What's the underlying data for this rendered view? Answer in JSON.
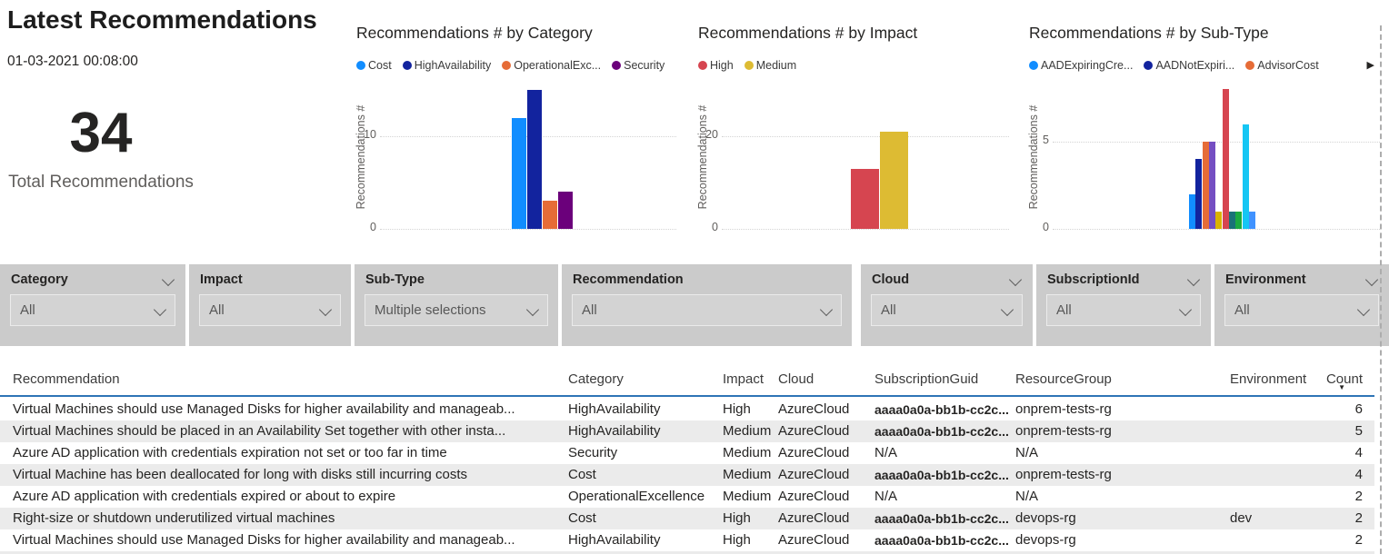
{
  "kpi": {
    "title": "Latest Recommendations",
    "timestamp": "01-03-2021 00:08:00",
    "value": "34",
    "label": "Total Recommendations"
  },
  "chart_data": [
    {
      "type": "bar",
      "title": "Recommendations # by Category",
      "ylabel": "Recommendations #",
      "categories": [
        "Cost",
        "HighAvailability",
        "OperationalExcellence",
        "Security"
      ],
      "legend_labels": [
        "Cost",
        "HighAvailability",
        "OperationalExc...",
        "Security"
      ],
      "values": [
        12,
        15,
        3,
        4
      ],
      "colors": [
        "#118DFF",
        "#12239E",
        "#E66C37",
        "#6B007B"
      ],
      "gridline": 10,
      "yticks": [
        0,
        10
      ],
      "ylim": [
        0,
        15.5
      ],
      "legend_position": "top",
      "legend_overflow": false
    },
    {
      "type": "bar",
      "title": "Recommendations # by Impact",
      "ylabel": "Recommendations #",
      "categories": [
        "High",
        "Medium"
      ],
      "legend_labels": [
        "High",
        "Medium"
      ],
      "values": [
        13,
        21
      ],
      "colors": [
        "#D64550",
        "#DDBB33"
      ],
      "gridline": 20,
      "yticks": [
        0,
        20
      ],
      "ylim": [
        0,
        22.4
      ],
      "legend_position": "top",
      "legend_overflow": false
    },
    {
      "type": "bar",
      "title": "Recommendations # by Sub-Type",
      "ylabel": "Recommendations #",
      "categories": [
        "AADExpiringCre...",
        "AADNotExpiri...",
        "AdvisorCost",
        "",
        "",
        "",
        "",
        "",
        "",
        ""
      ],
      "legend_labels": [
        "AADExpiringCre...",
        "AADNotExpiri...",
        "AdvisorCost"
      ],
      "values": [
        2,
        4,
        5,
        5,
        1,
        8,
        1,
        1,
        6,
        1
      ],
      "colors": [
        "#118DFF",
        "#12239E",
        "#E66C37",
        "#744EC2",
        "#D9B300",
        "#D64550",
        "#197278",
        "#1AAB40",
        "#15C6F4",
        "#4092FF"
      ],
      "gridline": 5,
      "yticks": [
        0,
        5
      ],
      "ylim": [
        0,
        8.3
      ],
      "legend_position": "top",
      "legend_overflow": true
    }
  ],
  "slicers": [
    {
      "label": "Category",
      "value": "All",
      "header_chevron": true
    },
    {
      "label": "Impact",
      "value": "All",
      "header_chevron": false
    },
    {
      "label": "Sub-Type",
      "value": "Multiple selections",
      "header_chevron": false
    },
    {
      "label": "Recommendation",
      "value": "All",
      "header_chevron": false
    },
    {
      "label": "Cloud",
      "value": "All",
      "header_chevron": true
    },
    {
      "label": "SubscriptionId",
      "value": "All",
      "header_chevron": true
    },
    {
      "label": "Environment",
      "value": "All",
      "header_chevron": true
    }
  ],
  "table": {
    "columns": [
      "Recommendation",
      "Category",
      "Impact",
      "Cloud",
      "SubscriptionGuid",
      "ResourceGroup",
      "Environment",
      "Count"
    ],
    "sort": {
      "column": "Count",
      "direction": "desc"
    },
    "rows": [
      [
        "Virtual Machines should use Managed Disks for higher availability and manageab...",
        "HighAvailability",
        "High",
        "AzureCloud",
        "aaaa0a0a-bb1b-cc2c...",
        "onprem-tests-rg",
        "",
        "6"
      ],
      [
        "Virtual Machines should be placed in an Availability Set together with other insta...",
        "HighAvailability",
        "Medium",
        "AzureCloud",
        "aaaa0a0a-bb1b-cc2c...",
        "onprem-tests-rg",
        "",
        "5"
      ],
      [
        "Azure AD application with credentials expiration not set or too far in time",
        "Security",
        "Medium",
        "AzureCloud",
        "N/A",
        "N/A",
        "",
        "4"
      ],
      [
        "Virtual Machine has been deallocated for long with disks still incurring costs",
        "Cost",
        "Medium",
        "AzureCloud",
        "aaaa0a0a-bb1b-cc2c...",
        "onprem-tests-rg",
        "",
        "4"
      ],
      [
        "Azure AD application with credentials expired or about to expire",
        "OperationalExcellence",
        "Medium",
        "AzureCloud",
        "N/A",
        "N/A",
        "",
        "2"
      ],
      [
        "Right-size or shutdown underutilized virtual machines",
        "Cost",
        "High",
        "AzureCloud",
        "aaaa0a0a-bb1b-cc2c...",
        "devops-rg",
        "dev",
        "2"
      ],
      [
        "Virtual Machines should use Managed Disks for higher availability and manageab...",
        "HighAvailability",
        "High",
        "AzureCloud",
        "aaaa0a0a-bb1b-cc2c...",
        "devops-rg",
        "",
        "2"
      ]
    ]
  },
  "icons": {
    "legend_next_arrow": "▶",
    "sort_descending": "▼"
  },
  "colors": {
    "header_underline": "#2E75B6",
    "slicer_panel": "#CBCBCB",
    "row_stripe": "#EBEBEB"
  }
}
